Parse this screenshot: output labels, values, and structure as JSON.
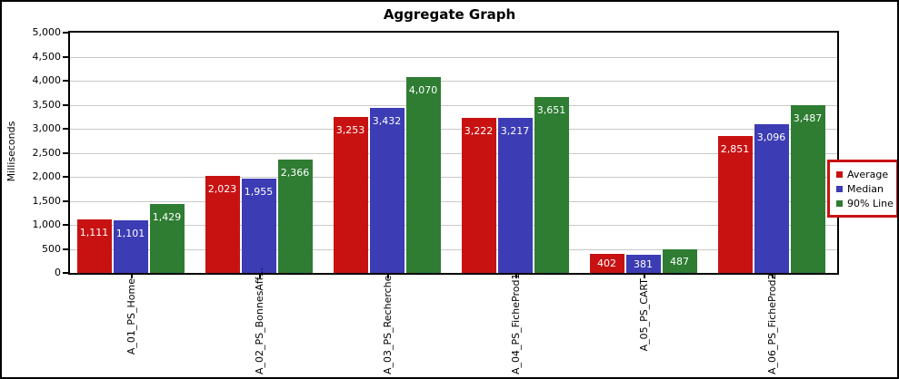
{
  "window": {
    "title": "Aggregate Graph"
  },
  "chart_data": {
    "type": "bar",
    "title": "Aggregate Graph",
    "xlabel": "",
    "ylabel": "Milliseconds",
    "ylim": [
      0,
      5000
    ],
    "ytick_step": 500,
    "ytick_labels": [
      "0",
      "500",
      "1,000",
      "1,500",
      "2,000",
      "2,500",
      "3,000",
      "3,500",
      "4,000",
      "4,500",
      "5,000"
    ],
    "grid": true,
    "legend_position": "right",
    "categories": [
      "A_01_PS_Home",
      "A_02_PS_BonnesAff...",
      "A_03_PS_Recherche",
      "A_04_PS_FicheProd1",
      "A_05_PS_CART",
      "A_06_PS_FicheProd2"
    ],
    "series": [
      {
        "name": "Average",
        "color": "#C81212",
        "values": [
          1111,
          2023,
          3253,
          3222,
          402,
          2851
        ],
        "labels": [
          "1,111",
          "2,023",
          "3,253",
          "3,222",
          "402",
          "2,851"
        ]
      },
      {
        "name": "Median",
        "color": "#3C3CB4",
        "values": [
          1101,
          1955,
          3432,
          3217,
          381,
          3096
        ],
        "labels": [
          "1,101",
          "1,955",
          "3,432",
          "3,217",
          "381",
          "3,096"
        ]
      },
      {
        "name": "90% Line",
        "color": "#2E7D32",
        "values": [
          1429,
          2366,
          4070,
          3651,
          487,
          3487
        ],
        "labels": [
          "1,429",
          "2,366",
          "4,070",
          "3,651",
          "487",
          "3,487"
        ]
      }
    ],
    "colors": {
      "grid": "#C9C9C9",
      "plot_border": "#000000",
      "outer_border": "#000000",
      "legend_border": "#C81212",
      "value_label": "#FFFFFF",
      "background": "#FFFFFF"
    }
  },
  "legend": {
    "items": [
      {
        "label": "Average",
        "color": "#C81212"
      },
      {
        "label": "Median",
        "color": "#3C3CB4"
      },
      {
        "label": "90% Line",
        "color": "#2E7D32"
      }
    ]
  }
}
